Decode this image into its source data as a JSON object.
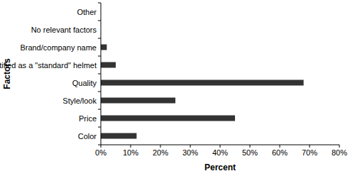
{
  "chart_data": {
    "type": "bar",
    "orientation": "horizontal",
    "x_label": "Percent",
    "y_label": "Factors",
    "categories": [
      "Other",
      "No relevant factors",
      "Brand/company name",
      "certified as a \"standard\" helmet",
      "Quality",
      "Style/look",
      "Price",
      "Color"
    ],
    "values": [
      0,
      0,
      2,
      5,
      68,
      25,
      45,
      12
    ],
    "color": "#333333",
    "xlim": [
      0,
      80
    ],
    "xticks": [
      {
        "value": 0,
        "label": "0%"
      },
      {
        "value": 10,
        "label": "10%"
      },
      {
        "value": 20,
        "label": "20%"
      },
      {
        "value": 30,
        "label": "30%"
      },
      {
        "value": 40,
        "label": "40%"
      },
      {
        "value": 50,
        "label": "50%"
      },
      {
        "value": 60,
        "label": "60%"
      },
      {
        "value": 70,
        "label": "70%"
      },
      {
        "value": 80,
        "label": "80%"
      }
    ],
    "grid": false
  }
}
